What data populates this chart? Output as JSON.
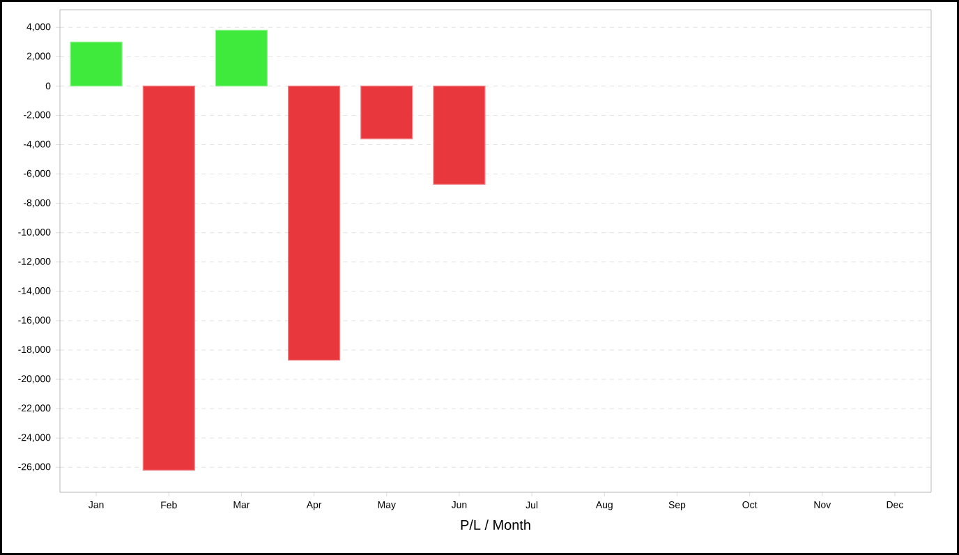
{
  "chart_data": {
    "type": "bar",
    "xlabel": "P/L / Month",
    "categories": [
      "Jan",
      "Feb",
      "Mar",
      "Apr",
      "May",
      "Jun",
      "Jul",
      "Aug",
      "Sep",
      "Oct",
      "Nov",
      "Dec"
    ],
    "values": [
      3000,
      -26200,
      3800,
      -18700,
      -3600,
      -6700,
      null,
      null,
      null,
      null,
      null,
      null
    ],
    "colors": [
      "#3fea3c",
      "#e8383d",
      "#3fea3c",
      "#e8383d",
      "#e8383d",
      "#e8383d",
      null,
      null,
      null,
      null,
      null,
      null
    ],
    "ylim": [
      -27700,
      5200
    ],
    "yticks": [
      {
        "value": -26000,
        "label": "-26,000"
      },
      {
        "value": -24000,
        "label": "-24,000"
      },
      {
        "value": -22000,
        "label": "-22,000"
      },
      {
        "value": -20000,
        "label": "-20,000"
      },
      {
        "value": -18000,
        "label": "-18,000"
      },
      {
        "value": -16000,
        "label": "-16,000"
      },
      {
        "value": -14000,
        "label": "-14,000"
      },
      {
        "value": -12000,
        "label": "-12,000"
      },
      {
        "value": -10000,
        "label": "-10,000"
      },
      {
        "value": -8000,
        "label": "-8,000"
      },
      {
        "value": -6000,
        "label": "-6,000"
      },
      {
        "value": -4000,
        "label": "-4,000"
      },
      {
        "value": -2000,
        "label": "-2,000"
      },
      0,
      {
        "value": 2000,
        "label": "2,000"
      },
      {
        "value": 4000,
        "label": "4,000"
      }
    ],
    "grid": "y"
  }
}
